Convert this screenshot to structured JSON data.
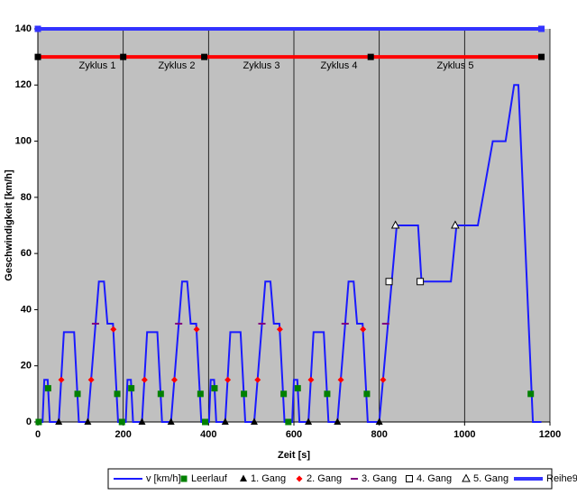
{
  "chart_data": {
    "type": "line",
    "x_label": "Zeit [s]",
    "y_label": "Geschwindigkeit [km/h]",
    "annotations": [
      "Zyklus 1",
      "Zyklus 2",
      "Zyklus 3",
      "Zyklus 4",
      "Zyklus 5"
    ],
    "xlim": [
      0,
      1200
    ],
    "xticks": [
      0,
      200,
      400,
      600,
      800,
      1000,
      1200
    ],
    "ylim": [
      0,
      140
    ],
    "yticks": [
      0,
      20,
      40,
      60,
      80,
      100,
      120,
      140
    ],
    "x_grid": true,
    "background": "#c0c0c0",
    "cycle_bar": {
      "color": "#ff0000",
      "marker_color": "#000000",
      "x": [
        0,
        200,
        390,
        780,
        1180
      ],
      "values": [
        130,
        130,
        130,
        130,
        130
      ]
    },
    "series": [
      {
        "name": "v [km/h]",
        "color": "#1a1aff",
        "marker": "line",
        "x": [
          0,
          11,
          15,
          23,
          28,
          49,
          61,
          85,
          96,
          117,
          143,
          155,
          163,
          176,
          188,
          195,
          206,
          210,
          218,
          223,
          244,
          256,
          280,
          291,
          312,
          338,
          350,
          358,
          371,
          383,
          390,
          401,
          405,
          413,
          418,
          439,
          451,
          475,
          486,
          507,
          533,
          545,
          553,
          566,
          578,
          585,
          596,
          600,
          608,
          613,
          634,
          646,
          670,
          681,
          702,
          728,
          740,
          748,
          761,
          773,
          780,
          800,
          841,
          891,
          899,
          968,
          981,
          1031,
          1066,
          1096,
          1116,
          1126,
          1160,
          1180
        ],
        "values": [
          0,
          0,
          15,
          15,
          0,
          0,
          32,
          32,
          0,
          0,
          50,
          50,
          35,
          35,
          0,
          0,
          0,
          15,
          15,
          0,
          0,
          32,
          32,
          0,
          0,
          50,
          50,
          35,
          35,
          0,
          0,
          0,
          15,
          15,
          0,
          0,
          32,
          32,
          0,
          0,
          50,
          50,
          35,
          35,
          0,
          0,
          0,
          15,
          15,
          0,
          0,
          32,
          32,
          0,
          0,
          50,
          50,
          35,
          35,
          0,
          0,
          0,
          70,
          70,
          50,
          50,
          70,
          70,
          100,
          100,
          120,
          120,
          0,
          0
        ]
      },
      {
        "name": "Leerlauf",
        "color": "#008000",
        "marker": "square",
        "x": [
          2,
          24,
          93,
          186,
          197,
          219,
          288,
          381,
          392,
          414,
          483,
          576,
          587,
          609,
          678,
          771,
          1155
        ],
        "values": [
          0,
          12,
          10,
          10,
          0,
          12,
          10,
          10,
          0,
          12,
          10,
          10,
          0,
          12,
          10,
          10,
          10
        ]
      },
      {
        "name": "1. Gang",
        "color": "#000000",
        "marker": "triangle",
        "x": [
          49,
          117,
          244,
          312,
          439,
          507,
          634,
          702,
          800
        ],
        "values": [
          0,
          0,
          0,
          0,
          0,
          0,
          0,
          0,
          0
        ]
      },
      {
        "name": "2. Gang",
        "color": "#ff0000",
        "marker": "diamond",
        "x": [
          55,
          125,
          177,
          250,
          320,
          372,
          445,
          515,
          567,
          640,
          710,
          762,
          809
        ],
        "values": [
          15,
          15,
          33,
          15,
          15,
          33,
          15,
          15,
          33,
          15,
          15,
          33,
          15
        ]
      },
      {
        "name": "3. Gang",
        "color": "#800080",
        "marker": "dash",
        "x": [
          135,
          330,
          525,
          720,
          815
        ],
        "values": [
          35,
          35,
          35,
          35,
          35
        ]
      },
      {
        "name": "4. Gang",
        "color": "#000000",
        "marker": "hollow-square",
        "x": [
          823,
          896
        ],
        "values": [
          50,
          50
        ]
      },
      {
        "name": "5. Gang",
        "color": "#000000",
        "marker": "hollow-triangle",
        "x": [
          838,
          978
        ],
        "values": [
          70,
          70
        ]
      },
      {
        "name": "Reihe9",
        "color": "#3333ff",
        "marker": "thick-line",
        "end_markers": true,
        "x": [
          0,
          1180
        ],
        "values": [
          140,
          140
        ]
      }
    ]
  }
}
